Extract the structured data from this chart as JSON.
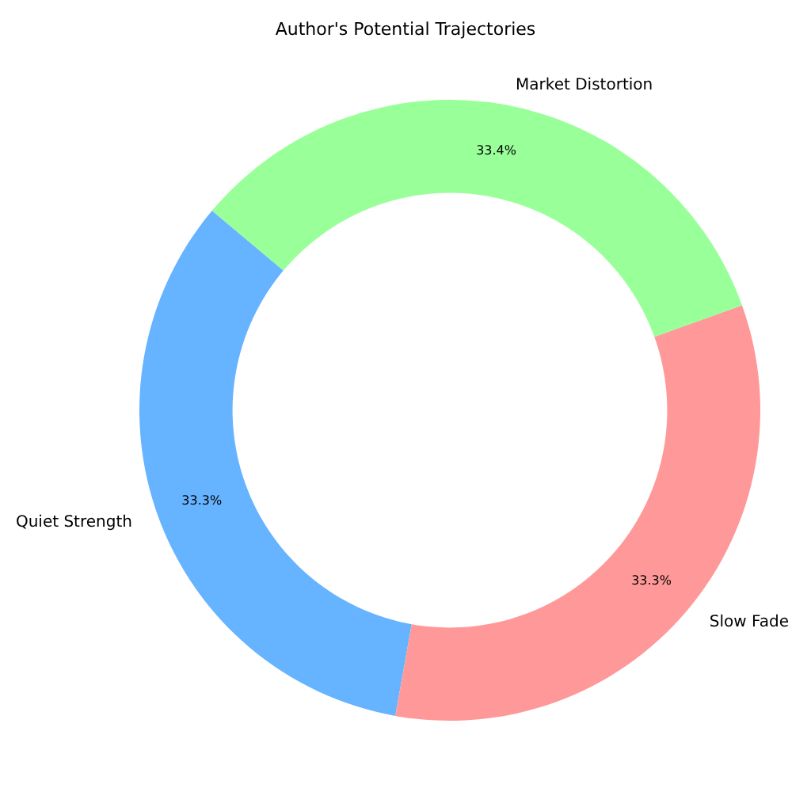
{
  "chart_data": {
    "type": "donut",
    "title": "Author's Potential Trajectories",
    "categories": [
      "Quiet Strength",
      "Slow Fade",
      "Market Distortion"
    ],
    "values": [
      33.3,
      33.3,
      33.4
    ],
    "colors": [
      "#66b3ff",
      "#ff9999",
      "#99ff99"
    ],
    "value_labels": [
      "33.3%",
      "33.3%",
      "33.4%"
    ],
    "legend": false
  }
}
